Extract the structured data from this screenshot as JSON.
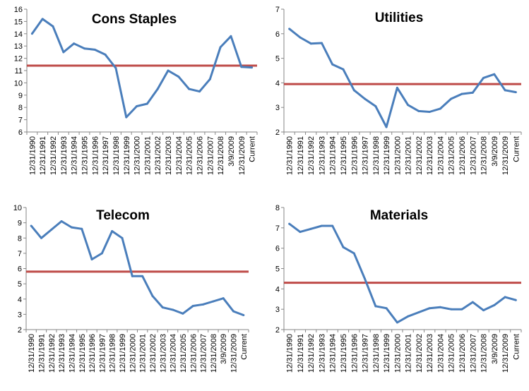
{
  "x_labels": [
    "12/31/1990",
    "12/31/1991",
    "12/31/1992",
    "12/31/1993",
    "12/31/1994",
    "12/31/1995",
    "12/31/1996",
    "12/31/1997",
    "12/31/1998",
    "12/31/1999",
    "12/31/2000",
    "12/31/2001",
    "12/31/2002",
    "12/31/2003",
    "12/31/2004",
    "12/31/2005",
    "12/31/2006",
    "12/31/2007",
    "12/31/2008",
    "3/9/2009",
    "12/31/2009",
    "Current"
  ],
  "colors": {
    "series": "#4a7ebb",
    "average": "#be4b48"
  },
  "chart_data": [
    {
      "type": "line",
      "title": "Cons Staples",
      "ylim": [
        6,
        16
      ],
      "yticks": [
        6,
        7,
        8,
        9,
        10,
        11,
        12,
        13,
        14,
        15,
        16
      ],
      "average": 11.4,
      "values": [
        14.0,
        15.2,
        14.6,
        12.5,
        13.2,
        12.8,
        12.7,
        12.3,
        11.2,
        7.2,
        8.1,
        8.3,
        9.5,
        11.0,
        10.5,
        9.5,
        9.3,
        10.3,
        12.9,
        13.8,
        11.3,
        11.25
      ]
    },
    {
      "type": "line",
      "title": "Utilities",
      "ylim": [
        2,
        7
      ],
      "yticks": [
        2,
        3,
        4,
        5,
        6,
        7
      ],
      "average": 3.95,
      "values": [
        6.2,
        5.85,
        5.6,
        5.62,
        4.75,
        4.55,
        3.7,
        3.35,
        3.05,
        2.2,
        3.8,
        3.1,
        2.85,
        2.82,
        2.95,
        3.35,
        3.55,
        3.6,
        4.2,
        4.35,
        3.7,
        3.62
      ]
    },
    {
      "type": "line",
      "title": "Telecom",
      "ylim": [
        2,
        10
      ],
      "yticks": [
        2,
        3,
        4,
        5,
        6,
        7,
        8,
        9,
        10
      ],
      "average": 5.8,
      "values": [
        8.8,
        8.0,
        8.55,
        9.1,
        8.7,
        8.6,
        6.6,
        7.0,
        8.45,
        8.0,
        5.5,
        5.5,
        4.2,
        3.45,
        3.3,
        3.05,
        3.55,
        3.65,
        3.85,
        4.05,
        3.2,
        2.95
      ]
    },
    {
      "type": "line",
      "title": "Materials",
      "ylim": [
        2,
        8
      ],
      "yticks": [
        2,
        3,
        4,
        5,
        6,
        7,
        8
      ],
      "average": 4.3,
      "values": [
        7.2,
        6.8,
        6.95,
        7.1,
        7.1,
        6.05,
        5.75,
        4.5,
        3.15,
        3.05,
        2.35,
        2.65,
        2.85,
        3.05,
        3.1,
        3.0,
        3.0,
        3.35,
        2.95,
        3.2,
        3.6,
        3.45
      ]
    }
  ]
}
